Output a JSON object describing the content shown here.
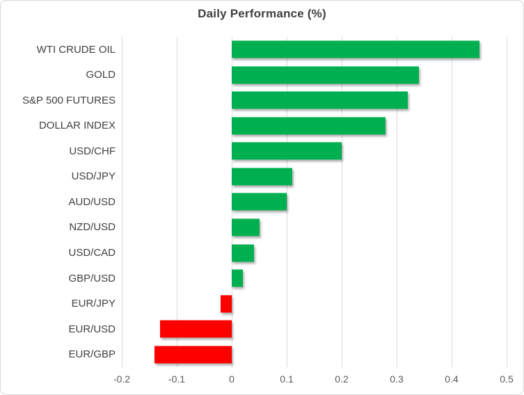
{
  "chart_data": {
    "type": "bar",
    "orientation": "horizontal",
    "title": "Daily Performance (%)",
    "categories": [
      "WTI CRUDE OIL",
      "GOLD",
      "S&P 500 FUTURES",
      "DOLLAR INDEX",
      "USD/CHF",
      "USD/JPY",
      "AUD/USD",
      "NZD/USD",
      "USD/CAD",
      "GBP/USD",
      "EUR/JPY",
      "EUR/USD",
      "EUR/GBP"
    ],
    "values": [
      0.45,
      0.34,
      0.32,
      0.28,
      0.2,
      0.11,
      0.1,
      0.05,
      0.04,
      0.02,
      -0.02,
      -0.13,
      -0.14
    ],
    "xlabel": "",
    "ylabel": "",
    "xlim": [
      -0.2,
      0.5
    ],
    "xticks": [
      -0.2,
      -0.1,
      0,
      0.1,
      0.2,
      0.3,
      0.4,
      0.5
    ],
    "xtick_labels": [
      "-0.2",
      "-0.1",
      "0",
      "0.1",
      "0.2",
      "0.3",
      "0.4",
      "0.5"
    ],
    "grid": "vertical-only",
    "legend": "none",
    "colors": {
      "positive_bar": "#00B050",
      "negative_bar": "#FF0000",
      "gridline": "#d9d9d9",
      "title_text": "#3f3f3f",
      "category_text": "#404040",
      "tick_text": "#595959",
      "frame_border": "#d8d8d8",
      "background": "#ffffff"
    }
  }
}
